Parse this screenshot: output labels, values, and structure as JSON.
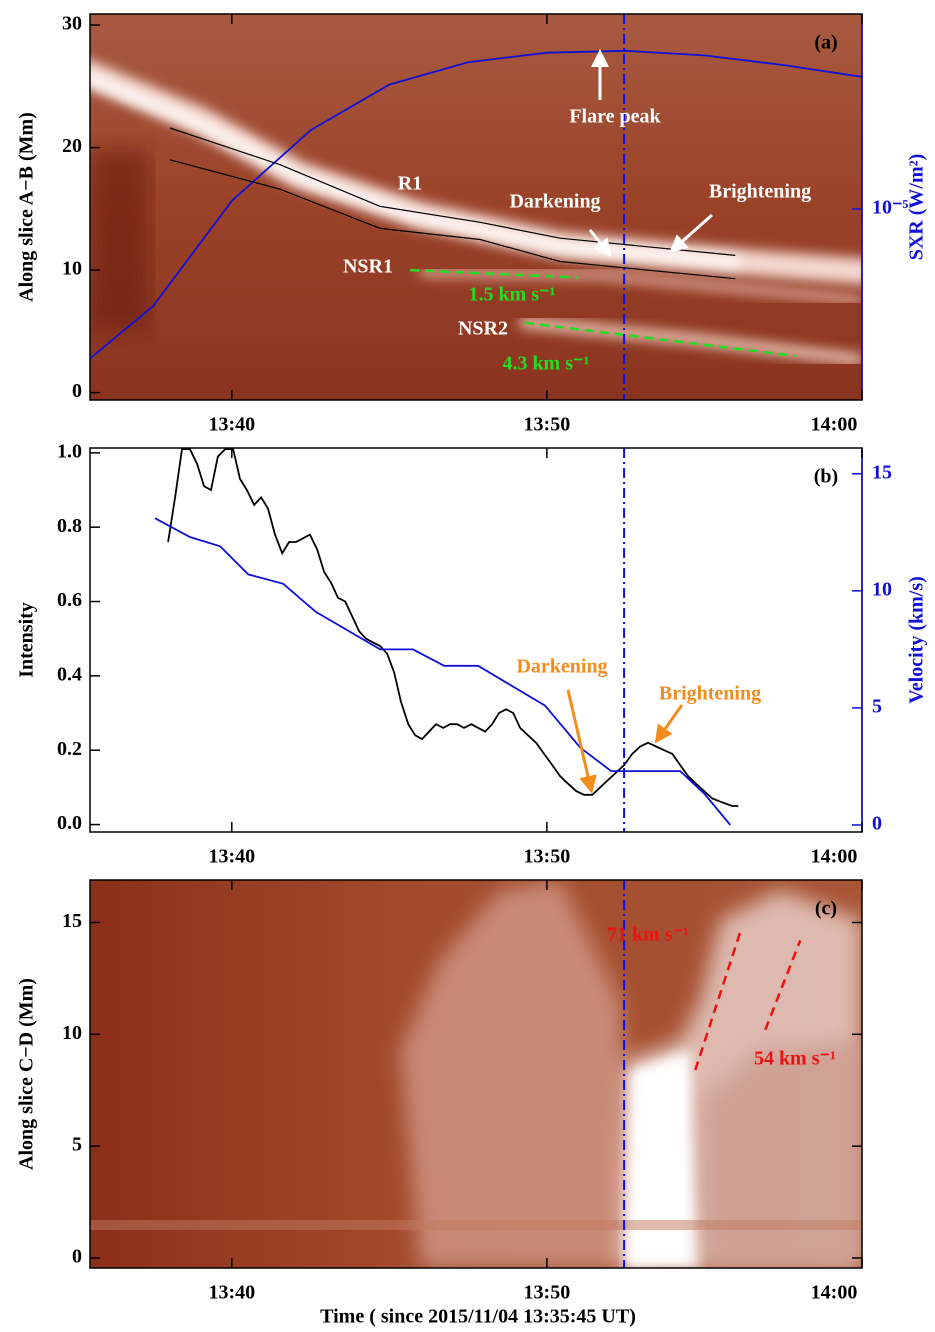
{
  "chart_data": [
    {
      "type": "image",
      "label": "(a)",
      "ylabel": "Along slice A−B (Mm)",
      "y2label": "SXR (W/m²)",
      "xlim": [
        35.5,
        60
      ],
      "xticks": [
        {
          "value": 40,
          "label": "13:40"
        },
        {
          "value": 50,
          "label": "13:50"
        },
        {
          "value": 60,
          "label": "14:00"
        }
      ],
      "ylim": [
        -0.6,
        30.9
      ],
      "yticks": [
        0,
        10,
        20,
        30
      ],
      "y2lim": [
        3.2e-06,
        3.2e-05
      ],
      "y2scale": "log",
      "y2ticks": [
        {
          "value": 1e-05,
          "label": "10⁻⁵"
        }
      ],
      "series": [
        {
          "color": "#1010d8",
          "axis": "y2",
          "x": [
            35.5,
            37.5,
            40,
            42.5,
            45,
            47.5,
            50,
            52.5,
            55,
            57.5,
            60
          ],
          "values": [
            4.1e-06,
            5.6e-06,
            1.05e-05,
            1.6e-05,
            2.1e-05,
            2.4e-05,
            2.54e-05,
            2.57e-05,
            2.5e-05,
            2.36e-05,
            2.2e-05
          ]
        }
      ],
      "overlays": [
        {
          "color": "#000000",
          "x": [
            38.04,
            41.53,
            44.71,
            47.88,
            50.42,
            55.98
          ],
          "y": [
            21.6,
            18.6,
            15.2,
            13.9,
            12.6,
            11.2
          ]
        },
        {
          "color": "#000000",
          "x": [
            38.04,
            41.53,
            44.71,
            47.88,
            50.42,
            55.98
          ],
          "y": [
            19.0,
            16.6,
            13.4,
            12.5,
            10.7,
            9.3
          ]
        },
        {
          "color": "#22dd22",
          "dashed": true,
          "x": [
            45.66,
            50.99
          ],
          "y": [
            10.0,
            9.4
          ]
        },
        {
          "color": "#22dd22",
          "dashed": true,
          "x": [
            49.31,
            57.88
          ],
          "y": [
            5.7,
            3.0
          ]
        }
      ],
      "vline": 52.45,
      "vline_color": "#1010d8",
      "annotations": [
        "Flare peak",
        "R1",
        "Darkening",
        "Brightening",
        "NSR1",
        "NSR2",
        "1.5 km s⁻¹",
        "4.3 km s⁻¹"
      ]
    },
    {
      "type": "line",
      "label": "(b)",
      "ylabel": "Intensity",
      "y2label": "Velocity (km/s)",
      "xlim": [
        35.5,
        60
      ],
      "xticks": [
        {
          "value": 40,
          "label": "13:40"
        },
        {
          "value": 50,
          "label": "13:50"
        },
        {
          "value": 60,
          "label": "14:00"
        }
      ],
      "ylim": [
        -0.02,
        1.013
      ],
      "yticks": [
        {
          "value": 0,
          "label": "0.0"
        },
        0.2,
        0.4,
        0.6,
        0.8,
        {
          "value": 1,
          "label": "1.0"
        }
      ],
      "y2lim": [
        -0.3,
        16.1
      ],
      "y2ticks": [
        0,
        5,
        10,
        15
      ],
      "series": [
        {
          "color": "#000000",
          "x": [
            37.98,
            38.2,
            38.42,
            38.67,
            38.9,
            39.12,
            39.34,
            39.56,
            39.79,
            40.04,
            40.26,
            40.48,
            40.71,
            40.93,
            41.15,
            41.37,
            41.6,
            41.82,
            42.04,
            42.26,
            42.48,
            42.71,
            42.93,
            43.15,
            43.37,
            43.6,
            43.82,
            44.04,
            44.26,
            44.48,
            44.71,
            44.93,
            45.15,
            45.37,
            45.6,
            45.82,
            46.04,
            46.26,
            46.48,
            46.71,
            46.93,
            47.15,
            47.37,
            47.6,
            47.82,
            48.04,
            48.26,
            48.48,
            48.71,
            48.93,
            49.15,
            49.4,
            49.66,
            49.91,
            50.17,
            50.42,
            50.67,
            50.93,
            51.18,
            51.44,
            51.69,
            51.94,
            52.2,
            52.45,
            52.71,
            52.96,
            53.21,
            53.47,
            53.72,
            53.98,
            54.23,
            54.48,
            54.73,
            54.99,
            55.25,
            55.56,
            55.88,
            56.07
          ],
          "values": [
            0.76,
            0.88,
            1.01,
            1.01,
            0.97,
            0.91,
            0.9,
            0.99,
            1.01,
            1.01,
            0.93,
            0.9,
            0.86,
            0.88,
            0.85,
            0.78,
            0.73,
            0.76,
            0.76,
            0.77,
            0.78,
            0.74,
            0.68,
            0.65,
            0.61,
            0.6,
            0.56,
            0.52,
            0.5,
            0.49,
            0.48,
            0.46,
            0.41,
            0.33,
            0.27,
            0.24,
            0.23,
            0.25,
            0.27,
            0.26,
            0.27,
            0.27,
            0.26,
            0.27,
            0.26,
            0.25,
            0.27,
            0.3,
            0.31,
            0.3,
            0.26,
            0.24,
            0.22,
            0.19,
            0.16,
            0.13,
            0.11,
            0.09,
            0.08,
            0.08,
            0.1,
            0.12,
            0.14,
            0.16,
            0.19,
            0.21,
            0.22,
            0.21,
            0.2,
            0.19,
            0.16,
            0.13,
            0.11,
            0.09,
            0.07,
            0.06,
            0.05,
            0.05
          ]
        },
        {
          "color": "#1010d8",
          "axis": "y2",
          "x": [
            37.56,
            38.67,
            39.63,
            40.52,
            41.63,
            42.67,
            44.71,
            45.75,
            46.74,
            47.82,
            49.94,
            51.06,
            52.04,
            54.23,
            55.02,
            55.82
          ],
          "values": [
            13.1,
            12.3,
            11.9,
            10.7,
            10.3,
            9.1,
            7.5,
            7.5,
            6.8,
            6.8,
            5.1,
            3.3,
            2.3,
            2.3,
            1.3,
            0
          ]
        }
      ],
      "vline": 52.45,
      "vline_color": "#1010d8",
      "annotations": [
        "Darkening",
        "Brightening"
      ]
    },
    {
      "type": "image",
      "label": "(c)",
      "ylabel": "Along slice C−D (Mm)",
      "xlabel": "Time ( since 2015/11/04 13:35:45 UT)",
      "xlim": [
        35.5,
        60
      ],
      "xticks": [
        {
          "value": 40,
          "label": "13:40"
        },
        {
          "value": 50,
          "label": "13:50"
        },
        {
          "value": 60,
          "label": "14:00"
        }
      ],
      "ylim": [
        -0.45,
        16.9
      ],
      "yticks": [
        0,
        5,
        10,
        15
      ],
      "overlays": [
        {
          "color": "#ee1111",
          "dashed": true,
          "x": [
            54.71,
            56.14
          ],
          "y": [
            8.4,
            14.6
          ]
        },
        {
          "color": "#ee1111",
          "dashed": true,
          "x": [
            56.93,
            58.04
          ],
          "y": [
            10.2,
            14.2
          ]
        }
      ],
      "vline": 52.45,
      "vline_color": "#1010d8",
      "annotations": [
        "71 km s⁻¹",
        "54 km s⁻¹"
      ]
    }
  ]
}
